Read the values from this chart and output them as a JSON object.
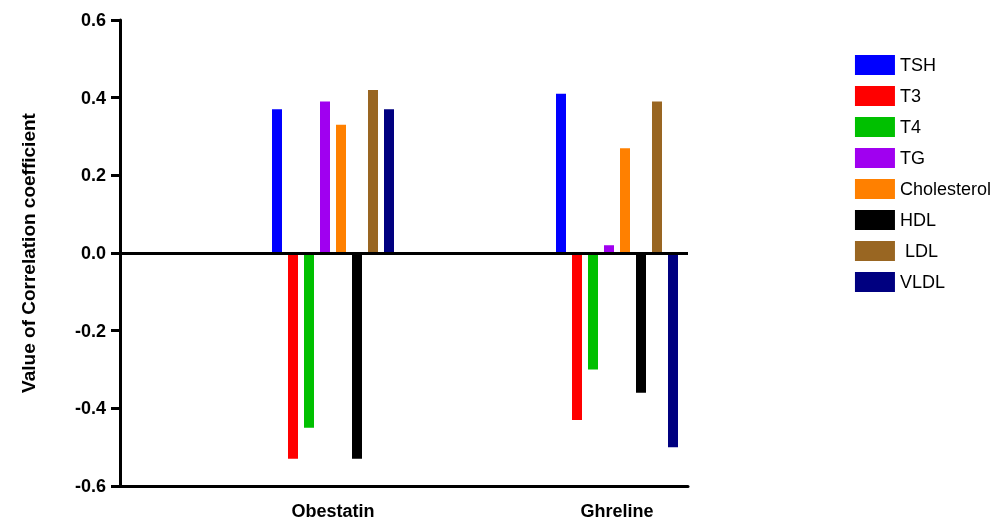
{
  "chart_data": {
    "type": "bar",
    "ylabel": "Value of Correlation coefficient",
    "categories": [
      null,
      "Obestatin",
      null,
      "Ghreline"
    ],
    "series": [
      {
        "name": "TSH",
        "color": "#0000ff",
        "values": [
          null,
          0.37,
          null,
          0.41
        ]
      },
      {
        "name": "T3",
        "color": "#ff0000",
        "values": [
          null,
          -0.53,
          null,
          -0.43
        ]
      },
      {
        "name": "T4",
        "color": "#00c000",
        "values": [
          null,
          -0.45,
          null,
          -0.3
        ]
      },
      {
        "name": "TG",
        "color": "#a000f0",
        "values": [
          null,
          0.39,
          null,
          0.02
        ]
      },
      {
        "name": "Cholesterol",
        "color": "#ff8000",
        "values": [
          null,
          0.33,
          null,
          0.27
        ]
      },
      {
        "name": "HDL",
        "color": "#000000",
        "values": [
          null,
          -0.53,
          null,
          -0.36
        ]
      },
      {
        "name": " LDL",
        "color": "#996622",
        "values": [
          null,
          0.42,
          null,
          0.39
        ]
      },
      {
        "name": "VLDL",
        "color": "#000080",
        "values": [
          null,
          0.37,
          null,
          -0.5
        ]
      }
    ],
    "ylim": [
      -0.6,
      0.6
    ],
    "yticks": [
      {
        "value": -0.6,
        "label": "-0.6"
      },
      {
        "value": -0.4,
        "label": "-0.4"
      },
      {
        "value": -0.2,
        "label": "-0.2"
      },
      {
        "value": 0,
        "label": "0.0"
      },
      {
        "value": 0.2,
        "label": "0.2"
      },
      {
        "value": 0.4,
        "label": "0.4"
      },
      {
        "value": 0.6,
        "label": "0.6"
      }
    ],
    "ref_lines": [
      {
        "axis": "y",
        "value": 0,
        "color": "#000000"
      }
    ],
    "grid": false,
    "legend": "right"
  }
}
